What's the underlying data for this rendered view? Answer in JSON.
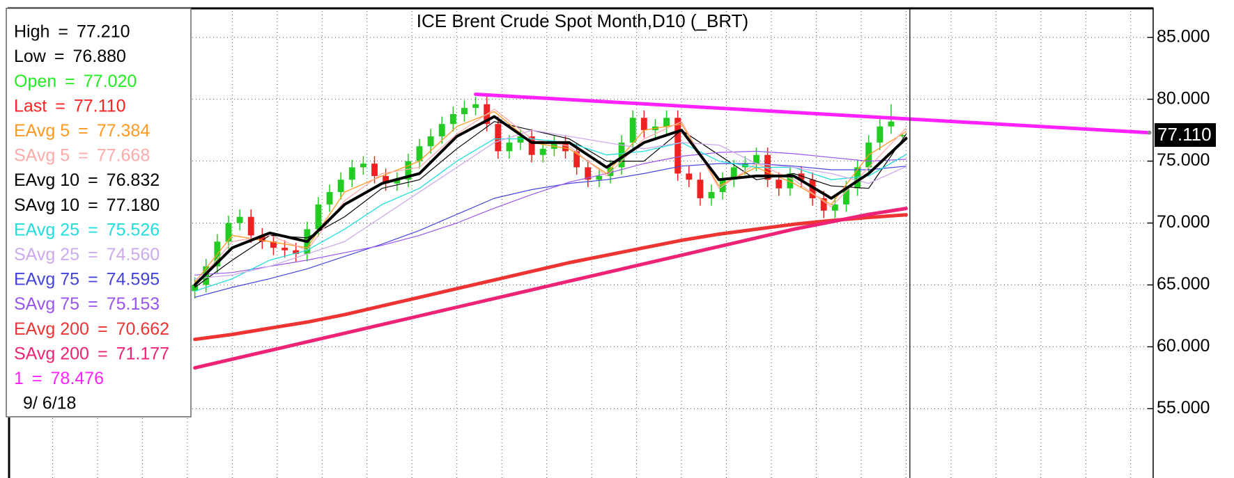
{
  "chart_data": {
    "type": "candlestick",
    "title": "ICE Brent Crude Spot Month,D10 (_BRT)",
    "x": [
      50,
      53,
      56,
      59,
      62,
      65,
      68,
      71,
      74,
      77,
      80,
      83,
      86,
      89,
      92,
      95,
      98,
      101,
      104,
      107,
      110,
      113,
      116,
      119,
      122,
      125,
      128,
      131,
      134,
      137,
      140,
      143,
      146,
      149,
      152,
      155,
      158,
      161,
      164,
      167,
      170,
      173,
      176,
      179,
      182,
      185,
      188,
      191,
      194,
      197,
      200,
      203,
      206,
      209,
      212,
      215,
      218,
      221,
      224,
      227,
      230,
      233,
      236,
      239
    ],
    "open": [
      64.5,
      65.0,
      66.5,
      68.5,
      70.0,
      70.5,
      69.0,
      68.5,
      68.0,
      67.8,
      67.5,
      69.5,
      71.5,
      72.5,
      73.5,
      74.5,
      74.8,
      73.8,
      73.2,
      73.5,
      75.0,
      76.2,
      77.0,
      78.0,
      78.8,
      79.3,
      79.6,
      78.0,
      75.8,
      76.5,
      77.0,
      75.5,
      76.0,
      76.5,
      75.8,
      74.5,
      73.5,
      73.8,
      74.5,
      76.5,
      78.5,
      77.5,
      77.8,
      78.5,
      74.0,
      73.5,
      72.0,
      72.5,
      73.5,
      74.5,
      74.8,
      75.5,
      73.5,
      72.8,
      74.0,
      73.5,
      72.0,
      71.0,
      71.5,
      72.8,
      74.5,
      76.5,
      77.8,
      77.02
    ],
    "high": [
      65.6,
      67.1,
      69.1,
      70.6,
      71.1,
      71.1,
      69.6,
      69.1,
      68.6,
      68.4,
      70.1,
      72.1,
      73.1,
      74.1,
      75.1,
      75.4,
      75.4,
      74.4,
      74.1,
      75.6,
      76.8,
      77.6,
      78.6,
      79.4,
      79.9,
      80.2,
      80.2,
      78.6,
      77.1,
      77.6,
      77.6,
      76.6,
      77.1,
      77.1,
      76.4,
      75.1,
      74.4,
      75.1,
      77.1,
      79.1,
      79.1,
      78.4,
      79.1,
      79.1,
      74.6,
      74.1,
      73.1,
      74.1,
      75.1,
      75.4,
      76.1,
      76.1,
      74.1,
      74.6,
      74.6,
      74.1,
      72.6,
      72.1,
      73.4,
      75.1,
      77.1,
      78.4,
      79.6,
      77.21
    ],
    "low": [
      63.9,
      64.4,
      65.9,
      67.9,
      69.4,
      68.4,
      67.9,
      67.4,
      67.2,
      66.9,
      66.9,
      68.9,
      70.9,
      71.9,
      72.9,
      73.9,
      73.2,
      72.6,
      72.6,
      72.9,
      74.4,
      75.6,
      76.4,
      77.4,
      78.2,
      78.7,
      77.4,
      75.2,
      75.2,
      75.9,
      74.9,
      74.9,
      75.4,
      75.2,
      73.9,
      72.9,
      72.9,
      73.2,
      73.9,
      75.9,
      76.9,
      76.9,
      77.2,
      73.4,
      72.9,
      71.4,
      71.4,
      71.9,
      72.9,
      73.9,
      74.2,
      72.9,
      72.2,
      72.2,
      72.9,
      71.4,
      70.4,
      70.4,
      70.9,
      72.2,
      73.9,
      75.9,
      77.2,
      76.88
    ],
    "close": [
      65.0,
      66.5,
      68.5,
      70.0,
      70.5,
      69.0,
      68.5,
      68.0,
      67.8,
      67.5,
      69.5,
      71.5,
      72.5,
      73.5,
      74.5,
      74.8,
      73.8,
      73.2,
      73.5,
      75.0,
      76.2,
      77.0,
      78.0,
      78.8,
      79.3,
      79.6,
      78.0,
      75.8,
      76.5,
      77.0,
      75.5,
      76.0,
      76.5,
      75.8,
      74.5,
      73.5,
      73.8,
      74.5,
      76.5,
      78.5,
      77.5,
      77.8,
      78.5,
      74.0,
      73.5,
      72.0,
      72.5,
      73.5,
      74.5,
      74.8,
      75.5,
      73.5,
      72.8,
      74.0,
      73.5,
      72.0,
      71.0,
      71.5,
      72.8,
      74.5,
      76.5,
      77.8,
      78.2,
      77.11
    ],
    "up_color": "#22cc22",
    "down_color": "#ee2222",
    "xlim": [
      0,
      306
    ],
    "xticks": [
      12,
      24,
      36,
      48,
      60,
      72,
      84,
      96,
      108,
      120,
      132,
      144,
      156,
      168,
      180,
      192,
      204,
      216,
      228,
      240,
      252,
      264,
      276,
      288,
      300
    ],
    "ylim": [
      49.4,
      87.4
    ],
    "yticks": [
      {
        "value": 85,
        "label": "85.000"
      },
      {
        "value": 80,
        "label": "80.000"
      },
      {
        "value": 75,
        "label": "75.000"
      },
      {
        "value": 70,
        "label": "70.000"
      },
      {
        "value": 65,
        "label": "65.000"
      },
      {
        "value": 60,
        "label": "60.000"
      },
      {
        "value": 55,
        "label": "55.000"
      }
    ],
    "grid": true,
    "separator": "=",
    "readout": [
      {
        "name": "High",
        "color": "#000000",
        "value": 77.21,
        "label": "77.210"
      },
      {
        "name": "Low",
        "color": "#000000",
        "value": 76.88,
        "label": "76.880"
      },
      {
        "name": "Open",
        "color": "#22ee22",
        "value": 77.02,
        "label": "77.020"
      },
      {
        "name": "Last",
        "color": "#ff2222",
        "value": 77.11,
        "label": "77.110"
      }
    ],
    "lines": {
      "x": [
        50,
        60,
        70,
        80,
        90,
        100,
        110,
        120,
        130,
        140,
        150,
        160,
        170,
        180,
        190,
        200,
        210,
        220,
        230,
        240
      ],
      "series": [
        {
          "name": "EAvg 5",
          "color": "#ff9922",
          "width": 1.3,
          "values": [
            65.2,
            69.0,
            68.5,
            68.0,
            72.5,
            73.8,
            75.0,
            77.8,
            79.0,
            76.5,
            76.0,
            74.0,
            77.5,
            78.0,
            73.0,
            74.5,
            73.2,
            71.5,
            75.5,
            77.384
          ],
          "readout": {
            "value": 77.384,
            "label": "77.384"
          }
        },
        {
          "name": "SAvg 5",
          "color": "#ffaaaa",
          "width": 1.3,
          "values": [
            65.0,
            68.5,
            69.0,
            67.8,
            71.8,
            74.0,
            74.5,
            77.2,
            79.2,
            76.8,
            76.2,
            73.8,
            76.8,
            78.2,
            72.8,
            74.8,
            73.5,
            71.3,
            74.5,
            77.668
          ],
          "readout": {
            "value": 77.668,
            "label": "77.668"
          }
        },
        {
          "name": "EAvg 10",
          "color": "#000000",
          "width": 4,
          "values": [
            65.0,
            68.0,
            69.2,
            68.5,
            71.5,
            73.2,
            74.0,
            77.0,
            78.6,
            76.5,
            76.5,
            74.5,
            76.5,
            77.5,
            73.5,
            73.8,
            73.8,
            72.0,
            74.0,
            76.832
          ],
          "readout": {
            "value": 76.832,
            "label": "76.832"
          }
        },
        {
          "name": "SAvg 10",
          "color": "#000000",
          "width": 1.2,
          "values": [
            64.8,
            67.0,
            69.0,
            68.8,
            70.5,
            72.8,
            73.5,
            76.0,
            78.2,
            77.5,
            76.8,
            75.0,
            75.0,
            77.5,
            75.5,
            73.5,
            74.0,
            73.0,
            72.8,
            77.18
          ],
          "readout": {
            "value": 77.18,
            "label": "77.180"
          }
        },
        {
          "name": "EAvg 25",
          "color": "#22dddd",
          "width": 1.3,
          "values": [
            64.5,
            65.5,
            67.0,
            67.8,
            69.5,
            71.5,
            72.8,
            75.0,
            76.8,
            76.8,
            76.5,
            75.5,
            75.8,
            76.5,
            75.0,
            74.5,
            74.5,
            73.5,
            73.8,
            75.526
          ],
          "readout": {
            "value": 75.526,
            "label": "75.526"
          }
        },
        {
          "name": "SAvg 25",
          "color": "#ccaaee",
          "width": 1.3,
          "values": [
            65.5,
            65.8,
            66.5,
            67.5,
            68.5,
            70.5,
            72.5,
            74.5,
            76.5,
            77.5,
            77.0,
            76.5,
            76.0,
            76.5,
            76.3,
            74.8,
            74.5,
            74.0,
            73.2,
            74.56
          ],
          "readout": {
            "value": 74.56,
            "label": "74.560"
          }
        },
        {
          "name": "EAvg 75",
          "color": "#4444dd",
          "width": 1.2,
          "values": [
            64.0,
            64.8,
            65.5,
            66.3,
            67.3,
            68.3,
            69.4,
            70.7,
            72.0,
            72.7,
            73.2,
            73.5,
            74.0,
            74.6,
            74.8,
            74.8,
            74.6,
            74.3,
            74.3,
            74.595
          ],
          "readout": {
            "value": 74.595,
            "label": "74.595"
          }
        },
        {
          "name": "SAvg 75",
          "color": "#9955ee",
          "width": 1.2,
          "values": [
            65.8,
            66.0,
            66.5,
            67.0,
            67.6,
            68.2,
            69.0,
            70.0,
            71.2,
            72.3,
            73.3,
            74.0,
            74.8,
            75.4,
            75.7,
            75.8,
            75.6,
            75.3,
            75.0,
            75.153
          ],
          "readout": {
            "value": 75.153,
            "label": "75.153"
          }
        },
        {
          "name": "EAvg 200",
          "color": "#ee3333",
          "width": 5,
          "values": [
            60.6,
            61.0,
            61.5,
            62.0,
            62.6,
            63.3,
            64.0,
            64.7,
            65.4,
            66.1,
            66.8,
            67.4,
            68.0,
            68.6,
            69.1,
            69.5,
            69.9,
            70.2,
            70.45,
            70.662
          ],
          "readout": {
            "value": 70.662,
            "label": "70.662"
          }
        },
        {
          "name": "SAvg 200",
          "color": "#ee2277",
          "width": 5,
          "values": [
            58.3,
            59.0,
            59.7,
            60.4,
            61.1,
            61.8,
            62.5,
            63.2,
            63.9,
            64.6,
            65.3,
            66.0,
            66.7,
            67.4,
            68.1,
            68.8,
            69.5,
            70.1,
            70.7,
            71.177
          ],
          "readout": {
            "value": 71.177,
            "label": "71.177"
          }
        }
      ]
    },
    "trendline": {
      "name": "1",
      "color": "#ff22ff",
      "width": 5,
      "x": [
        125,
        305
      ],
      "values": [
        80.4,
        77.3
      ],
      "readout": {
        "value": 78.476,
        "label": "78.476"
      }
    },
    "cursor": {
      "x": 241,
      "date": "9/ 6/18"
    }
  }
}
